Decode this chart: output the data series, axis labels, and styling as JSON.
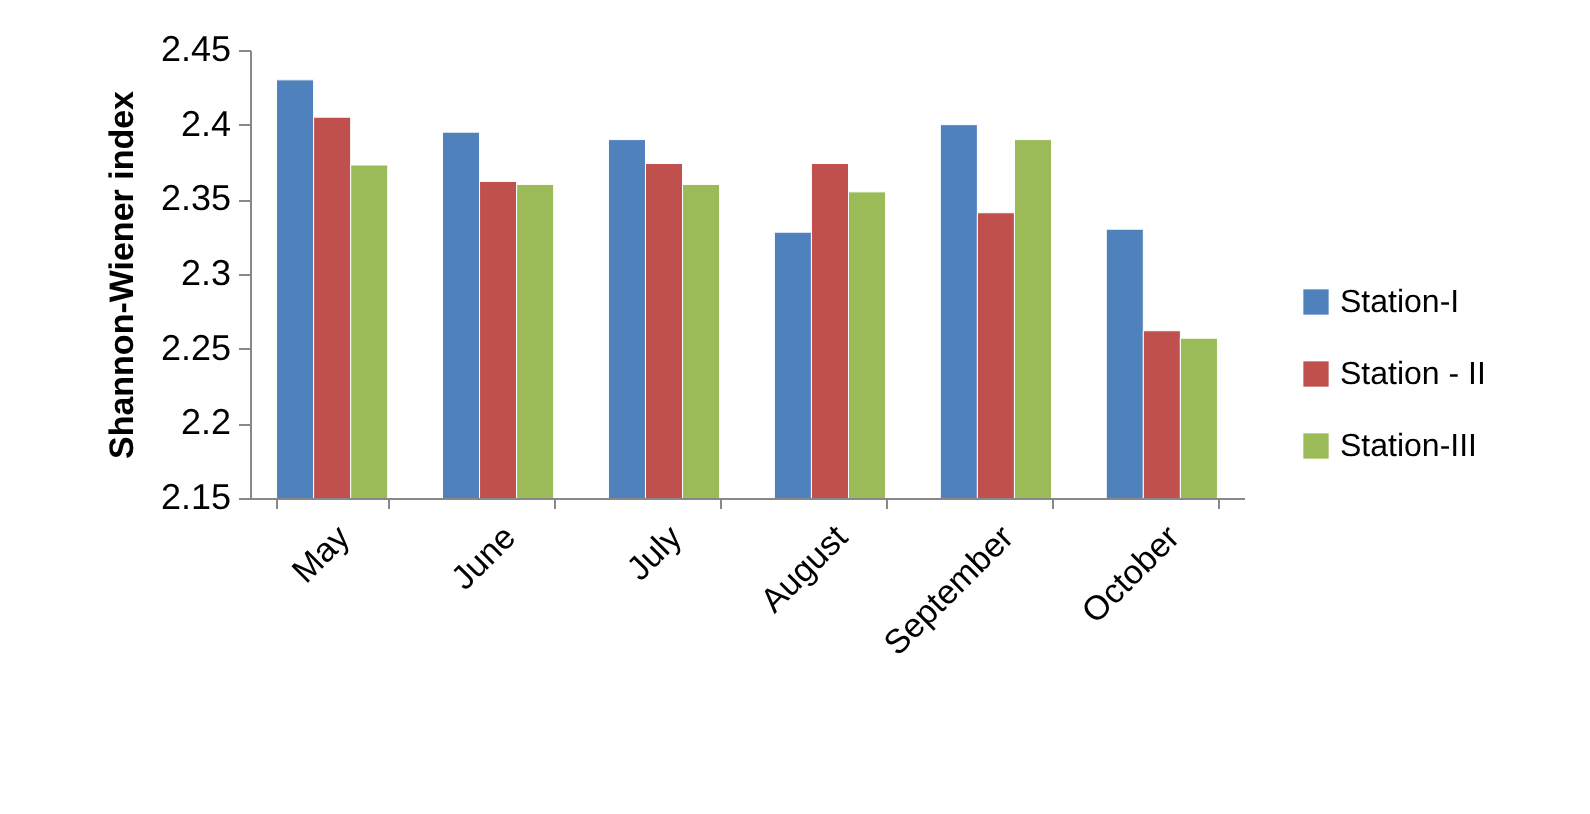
{
  "chart_data": {
    "type": "bar",
    "ylabel": "Shannon-Wiener index",
    "categories": [
      "May",
      "June",
      "July",
      "August",
      "September",
      "October"
    ],
    "series": [
      {
        "name": "Station-I",
        "color": "#4f81bd",
        "values": [
          2.43,
          2.395,
          2.39,
          2.328,
          2.4,
          2.33
        ]
      },
      {
        "name": "Station - II",
        "color": "#c0504d",
        "values": [
          2.405,
          2.362,
          2.374,
          2.374,
          2.341,
          2.262
        ]
      },
      {
        "name": "Station-III",
        "color": "#9bbb59",
        "values": [
          2.373,
          2.36,
          2.36,
          2.355,
          2.39,
          2.257
        ]
      }
    ],
    "ylim": [
      2.15,
      2.45
    ],
    "yticks": [
      2.15,
      2.2,
      2.25,
      2.3,
      2.35,
      2.4,
      2.45
    ],
    "grid": false,
    "legend": "right"
  }
}
